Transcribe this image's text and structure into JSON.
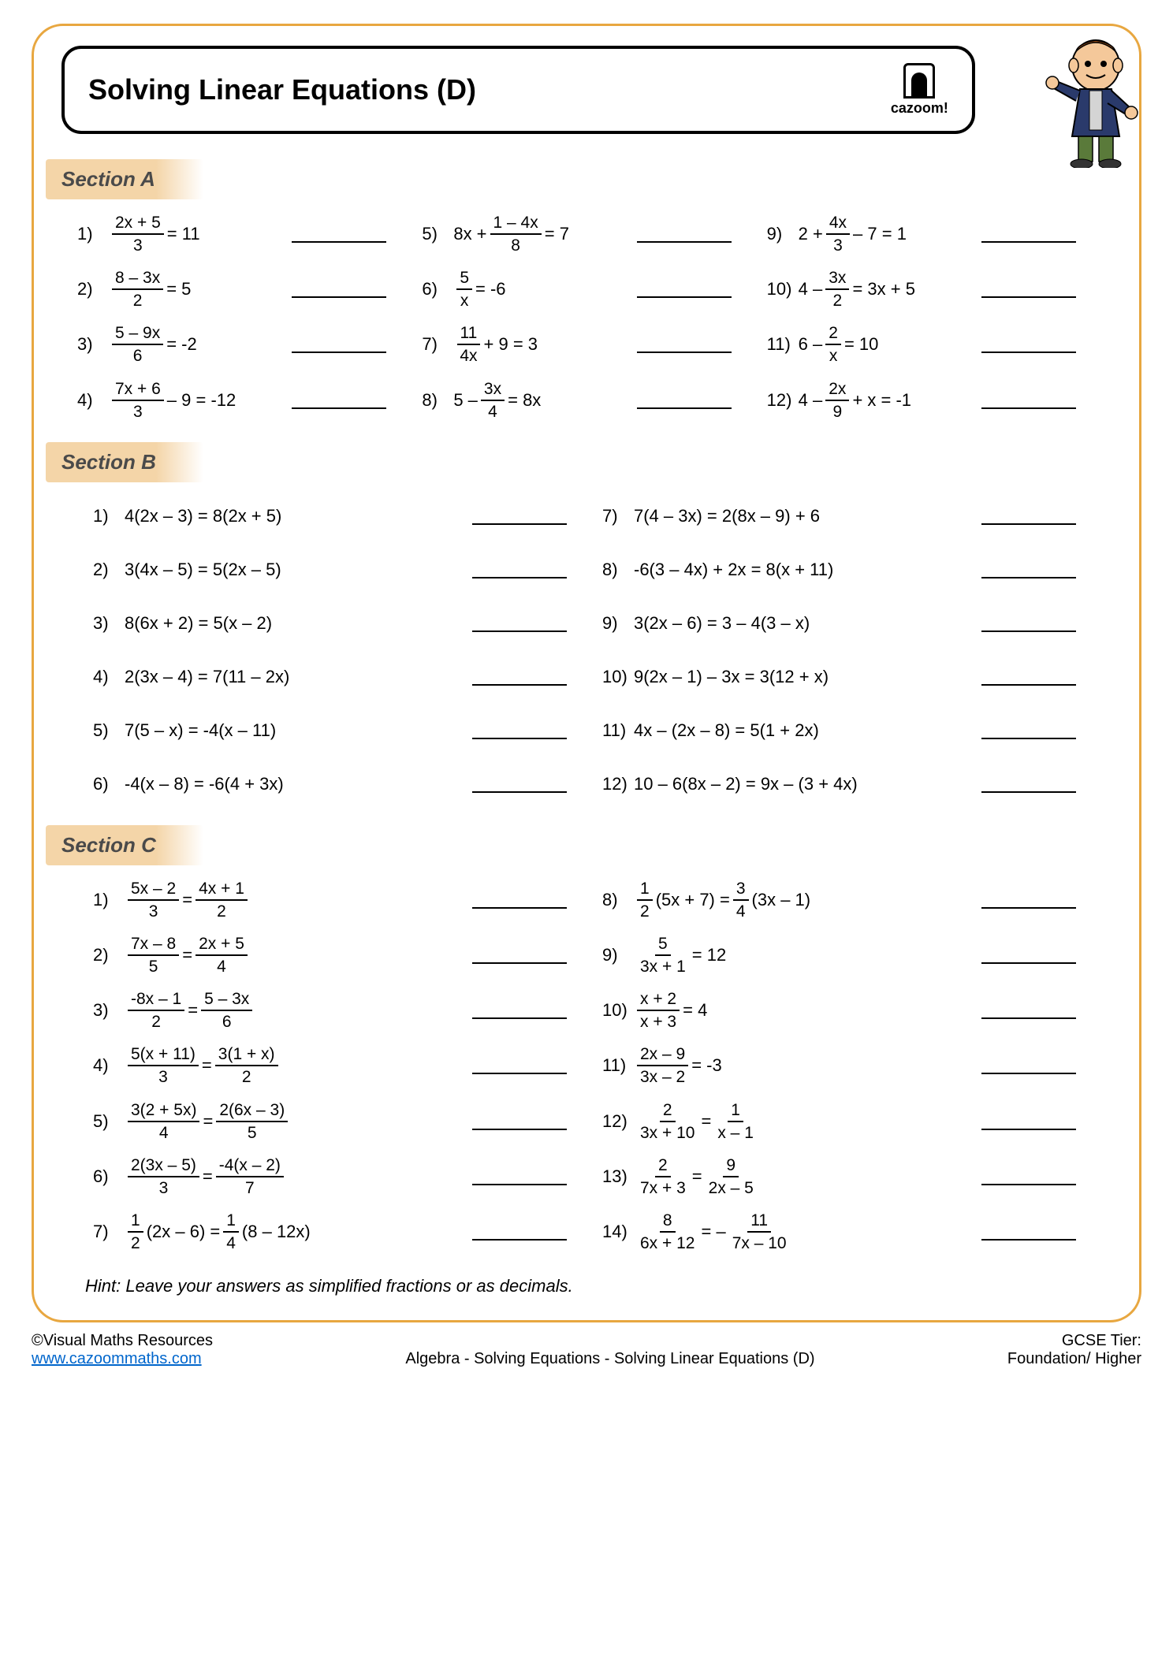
{
  "title": "Solving Linear Equations (D)",
  "logo_text": "cazoom!",
  "sections": {
    "a": {
      "label": "Section A"
    },
    "b": {
      "label": "Section B"
    },
    "c": {
      "label": "Section C"
    }
  },
  "section_a": [
    {
      "n": "1)",
      "frac_num": "2x + 5",
      "frac_den": "3",
      "rest": " = 11"
    },
    {
      "n": "5)",
      "pre": "8x + ",
      "frac_num": "1 – 4x",
      "frac_den": "8",
      "rest": " = 7"
    },
    {
      "n": "9)",
      "pre": "2 + ",
      "frac_num": "4x",
      "frac_den": "3",
      "rest": " – 7 = 1"
    },
    {
      "n": "2)",
      "frac_num": "8 – 3x",
      "frac_den": "2",
      "rest": " = 5"
    },
    {
      "n": "6)",
      "frac_num": "5",
      "frac_den": "x",
      "rest": " = -6"
    },
    {
      "n": "10)",
      "pre": "4 – ",
      "frac_num": "3x",
      "frac_den": "2",
      "rest": " = 3x + 5"
    },
    {
      "n": "3)",
      "frac_num": "5 – 9x",
      "frac_den": "6",
      "rest": " = -2"
    },
    {
      "n": "7)",
      "frac_num": "11",
      "frac_den": "4x",
      "rest": " + 9 = 3"
    },
    {
      "n": "11)",
      "pre": "6 – ",
      "frac_num": "2",
      "frac_den": "x",
      "rest": " = 10"
    },
    {
      "n": "4)",
      "frac_num": "7x + 6",
      "frac_den": "3",
      "rest": " – 9 = -12"
    },
    {
      "n": "8)",
      "pre": "5 – ",
      "frac_num": "3x",
      "frac_den": "4",
      "rest": " = 8x"
    },
    {
      "n": "12)",
      "pre": "4 – ",
      "frac_num": "2x",
      "frac_den": "9",
      "rest": " + x = -1"
    }
  ],
  "section_b": [
    {
      "n": "1)",
      "eq": "4(2x – 3) = 8(2x + 5)"
    },
    {
      "n": "7)",
      "eq": "7(4 – 3x) = 2(8x – 9) + 6"
    },
    {
      "n": "2)",
      "eq": "3(4x – 5) = 5(2x – 5)"
    },
    {
      "n": "8)",
      "eq": "-6(3 – 4x) + 2x = 8(x + 11)"
    },
    {
      "n": "3)",
      "eq": "8(6x + 2) = 5(x – 2)"
    },
    {
      "n": "9)",
      "eq": "3(2x – 6) = 3 – 4(3 – x)"
    },
    {
      "n": "4)",
      "eq": "2(3x – 4) = 7(11 – 2x)"
    },
    {
      "n": "10)",
      "eq": "9(2x – 1) – 3x = 3(12 + x)"
    },
    {
      "n": "5)",
      "eq": "7(5 – x) = -4(x – 11)"
    },
    {
      "n": "11)",
      "eq": "4x – (2x – 8) = 5(1 + 2x)"
    },
    {
      "n": "6)",
      "eq": "-4(x – 8) = -6(4 + 3x)"
    },
    {
      "n": "12)",
      "eq": "10 – 6(8x – 2) = 9x – (3 + 4x)"
    }
  ],
  "section_c": [
    {
      "n": "1)",
      "f1n": "5x – 2",
      "f1d": "3",
      "mid": " = ",
      "f2n": "4x + 1",
      "f2d": "2"
    },
    {
      "n": "8)",
      "f1n": "1",
      "f1d": "2",
      "mid1": "(5x + 7) = ",
      "f2n": "3",
      "f2d": "4",
      "post": "(3x – 1)"
    },
    {
      "n": "2)",
      "f1n": "7x – 8",
      "f1d": "5",
      "mid": " = ",
      "f2n": "2x + 5",
      "f2d": "4"
    },
    {
      "n": "9)",
      "f1n": "5",
      "f1d": "3x + 1",
      "rest": " = 12"
    },
    {
      "n": "3)",
      "f1n": "-8x – 1",
      "f1d": "2",
      "mid": " = ",
      "f2n": "5 – 3x",
      "f2d": "6"
    },
    {
      "n": "10)",
      "f1n": "x + 2",
      "f1d": "x + 3",
      "rest": " = 4"
    },
    {
      "n": "4)",
      "f1n": "5(x + 11)",
      "f1d": "3",
      "mid": " = ",
      "f2n": "3(1 + x)",
      "f2d": "2"
    },
    {
      "n": "11)",
      "f1n": "2x – 9",
      "f1d": "3x – 2",
      "rest": " = -3"
    },
    {
      "n": "5)",
      "f1n": "3(2 + 5x)",
      "f1d": "4",
      "mid": " = ",
      "f2n": "2(6x – 3)",
      "f2d": "5"
    },
    {
      "n": "12)",
      "f1n": "2",
      "f1d": "3x + 10",
      "mid": " = ",
      "f2n": "1",
      "f2d": "x – 1"
    },
    {
      "n": "6)",
      "f1n": "2(3x – 5)",
      "f1d": "3",
      "mid": " = ",
      "f2n": "-4(x – 2)",
      "f2d": "7"
    },
    {
      "n": "13)",
      "f1n": "2",
      "f1d": "7x + 3",
      "mid": " = ",
      "f2n": "9",
      "f2d": "2x – 5"
    },
    {
      "n": "7)",
      "f1n": "1",
      "f1d": "2",
      "mid1": "(2x – 6) = ",
      "f2n": "1",
      "f2d": "4",
      "post": "(8 – 12x)"
    },
    {
      "n": "14)",
      "f1n": "8",
      "f1d": "6x + 12",
      "mid": " = – ",
      "f2n": "11",
      "f2d": "7x – 10"
    }
  ],
  "hint": "Hint: Leave your answers as simplified fractions or as decimals.",
  "footer": {
    "copyright": "©Visual Maths Resources",
    "url": "www.cazoommaths.com",
    "breadcrumb": "Algebra - Solving Equations - Solving Linear Equations (D)",
    "tier_label": "GCSE Tier:",
    "tier_value": "Foundation/ Higher"
  },
  "colors": {
    "border": "#e8a740",
    "section_bg": "#f4d5a8",
    "text": "#000000",
    "link": "#0066cc"
  }
}
